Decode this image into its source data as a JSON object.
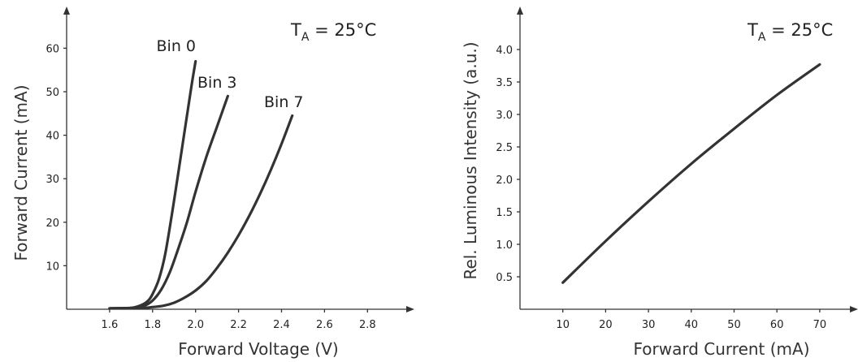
{
  "chart_data": [
    {
      "type": "line",
      "xlabel": "Forward Voltage (V)",
      "ylabel": "Forward Current (mA)",
      "condition": {
        "main": "T",
        "sub": "A",
        "rest": " = 25°C"
      },
      "xlim": [
        1.4,
        2.9
      ],
      "ylim": [
        0,
        70
      ],
      "xticks": [
        "1.6",
        "1.8",
        "2.0",
        "2.2",
        "2.4",
        "2.6",
        "2.8"
      ],
      "yticks": [
        "10",
        "20",
        "30",
        "40",
        "50",
        "60"
      ],
      "grid": false,
      "series": [
        {
          "name": "Bin 0",
          "x": [
            1.6,
            1.7,
            1.75,
            1.78,
            1.8,
            1.83,
            1.86,
            1.9,
            1.94,
            1.98,
            2.0
          ],
          "y": [
            0.2,
            0.3,
            1.0,
            2.0,
            3.5,
            7.0,
            13.0,
            25.0,
            38.0,
            51.0,
            57.0
          ]
        },
        {
          "name": "Bin 3",
          "x": [
            1.6,
            1.7,
            1.76,
            1.8,
            1.84,
            1.88,
            1.92,
            1.96,
            2.0,
            2.05,
            2.1,
            2.15
          ],
          "y": [
            0.2,
            0.3,
            0.8,
            2.0,
            4.5,
            8.5,
            14.0,
            20.0,
            27.0,
            35.0,
            42.0,
            49.0
          ]
        },
        {
          "name": "Bin 7",
          "x": [
            1.6,
            1.75,
            1.8,
            1.85,
            1.9,
            1.95,
            2.0,
            2.05,
            2.1,
            2.15,
            2.2,
            2.25,
            2.3,
            2.35,
            2.4,
            2.45
          ],
          "y": [
            0.2,
            0.3,
            0.5,
            0.8,
            1.5,
            2.7,
            4.3,
            6.5,
            9.5,
            13.0,
            17.0,
            21.5,
            26.5,
            32.0,
            38.0,
            44.5
          ]
        }
      ]
    },
    {
      "type": "line",
      "xlabel": "Forward Current (mA)",
      "ylabel": "Rel. Luminous Intensity (a.u.)",
      "condition": {
        "main": "T",
        "sub": "A",
        "rest": " = 25°C"
      },
      "xlim": [
        0,
        76
      ],
      "ylim": [
        0,
        4.6
      ],
      "xticks": [
        "10",
        "20",
        "30",
        "40",
        "50",
        "60",
        "70"
      ],
      "yticks": [
        "0.5",
        "1.0",
        "1.5",
        "2.0",
        "2.5",
        "3.0",
        "3.5",
        "4.0"
      ],
      "grid": false,
      "series": [
        {
          "x": [
            10,
            20,
            30,
            40,
            50,
            60,
            70
          ],
          "y": [
            0.41,
            1.05,
            1.66,
            2.24,
            2.78,
            3.3,
            3.77
          ]
        }
      ]
    }
  ]
}
